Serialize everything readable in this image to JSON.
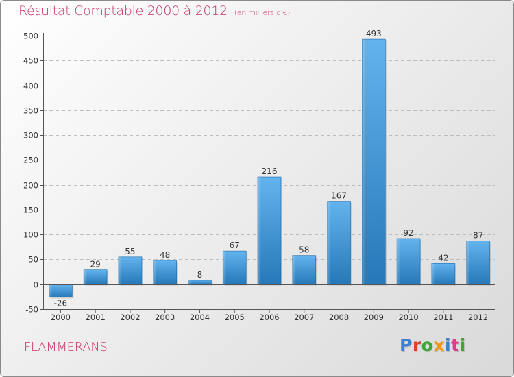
{
  "header": {
    "title": "Résultat Comptable 2000 à 2012",
    "subtitle": "(en milliers d'€)"
  },
  "footer": {
    "commune": "FLAMMERANS",
    "logo_text": "Proxiti"
  },
  "colors": {
    "title": "#c8336a",
    "bar_top": "#63b3ee",
    "bar_bottom": "#2678b8",
    "logo": [
      "#3d7fd1",
      "#d8442c",
      "#3fa535",
      "#e89a1b",
      "#3d7fd1",
      "#e03a8b",
      "#3fa535"
    ]
  },
  "chart_data": {
    "type": "bar",
    "categories": [
      "2000",
      "2001",
      "2002",
      "2003",
      "2004",
      "2005",
      "2006",
      "2007",
      "2008",
      "2009",
      "2010",
      "2011",
      "2012"
    ],
    "values": [
      -26,
      29,
      55,
      48,
      8,
      67,
      216,
      58,
      167,
      493,
      92,
      42,
      87
    ],
    "title": "Résultat Comptable 2000 à 2012",
    "subtitle": "(en milliers d'€)",
    "ylim": [
      -50,
      500
    ],
    "yticks": [
      -50,
      0,
      50,
      100,
      150,
      200,
      250,
      300,
      350,
      400,
      450,
      500
    ],
    "grid": "horizontal dashed"
  }
}
